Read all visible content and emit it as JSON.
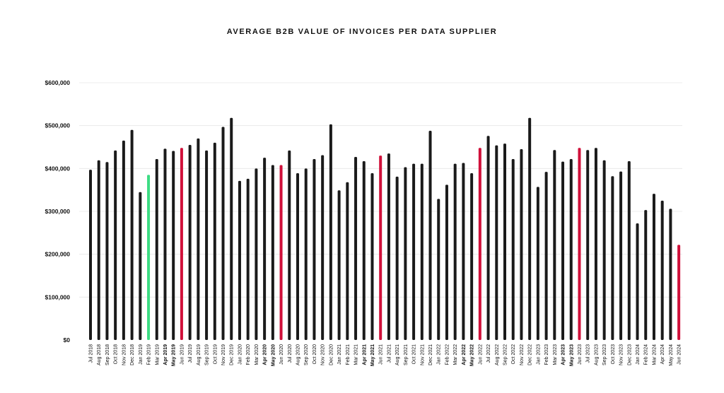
{
  "chart_data": {
    "type": "bar",
    "title": "AVERAGE B2B VALUE OF INVOICES PER DATA SUPPLIER",
    "xlabel": "",
    "ylabel": "",
    "ylim": [
      0,
      600000
    ],
    "yticks": [
      0,
      100000,
      200000,
      300000,
      400000,
      500000,
      600000
    ],
    "ytick_labels": [
      "$0",
      "$100,000",
      "$200,000",
      "$300,000",
      "$400,000",
      "$500,000",
      "$600,000"
    ],
    "grid": true,
    "legend": "none",
    "colors": {
      "default": "#1a1a1a",
      "highlight_red": "#d0103a",
      "highlight_green": "#3ddc84"
    },
    "categories": [
      "Jul 2018",
      "Aug 2018",
      "Sep 2018",
      "Oct 2018",
      "Nov 2018",
      "Dec 2018",
      "Jan 2019",
      "Feb 2019",
      "Mar 2019",
      "Apr 2019",
      "May 2019",
      "Jun 2019",
      "Jul 2019",
      "Aug 2019",
      "Sep 2019",
      "Oct 2019",
      "Nov 2019",
      "Dec 2019",
      "Jan 2020",
      "Feb 2020",
      "Mar 2020",
      "Apr 2020",
      "May 2020",
      "Jun 2020",
      "Jul 2020",
      "Aug 2020",
      "Sep 2020",
      "Oct 2020",
      "Nov 2020",
      "Dec 2020",
      "Jan 2021",
      "Feb 2021",
      "Mar 2021",
      "Apr 2021",
      "May 2021",
      "Jun 2021",
      "Jul 2021",
      "Aug 2021",
      "Sep 2021",
      "Oct 2021",
      "Nov 2021",
      "Dec 2021",
      "Jan 2022",
      "Feb 2022",
      "Mar 2022",
      "Apr 2022",
      "May 2022",
      "Jun 2022",
      "Jul 2022",
      "Aug 2022",
      "Sep 2022",
      "Oct 2022",
      "Nov 2022",
      "Dec 2022",
      "Jan 2023",
      "Feb 2023",
      "Mar 2023",
      "Apr 2023",
      "May 2023",
      "Jun 2023",
      "Jul 2023",
      "Aug 2023",
      "Sep 2023",
      "Oct 2023",
      "Nov 2023",
      "Dec 2023",
      "Jan 2024",
      "Feb 2024",
      "Mar 2024",
      "Apr 2024",
      "May 2024",
      "Jun 2024"
    ],
    "values": [
      397000,
      419000,
      415000,
      442000,
      465000,
      490000,
      345000,
      385000,
      422000,
      446000,
      441000,
      448000,
      455000,
      470000,
      442000,
      460000,
      497000,
      518000,
      371000,
      376000,
      400000,
      425000,
      408000,
      408000,
      442000,
      389000,
      400000,
      422000,
      431000,
      503000,
      349000,
      368000,
      427000,
      417000,
      389000,
      430000,
      435000,
      381000,
      403000,
      411000,
      411000,
      488000,
      329000,
      362000,
      411000,
      413000,
      389000,
      448000,
      476000,
      454000,
      458000,
      422000,
      445000,
      518000,
      357000,
      392000,
      443000,
      416000,
      422000,
      448000,
      443000,
      448000,
      419000,
      382000,
      393000,
      417000,
      272000,
      303000,
      341000,
      325000,
      306000,
      222000
    ],
    "bar_colors": [
      "default",
      "default",
      "default",
      "default",
      "default",
      "default",
      "default",
      "highlight_green",
      "default",
      "default",
      "default",
      "highlight_red",
      "default",
      "default",
      "default",
      "default",
      "default",
      "default",
      "default",
      "default",
      "default",
      "default",
      "default",
      "highlight_red",
      "default",
      "default",
      "default",
      "default",
      "default",
      "default",
      "default",
      "default",
      "default",
      "default",
      "default",
      "highlight_red",
      "default",
      "default",
      "default",
      "default",
      "default",
      "default",
      "default",
      "default",
      "default",
      "default",
      "default",
      "highlight_red",
      "default",
      "default",
      "default",
      "default",
      "default",
      "default",
      "default",
      "default",
      "default",
      "default",
      "default",
      "highlight_red",
      "default",
      "default",
      "default",
      "default",
      "default",
      "default",
      "default",
      "default",
      "default",
      "default",
      "default",
      "highlight_red"
    ],
    "bold_tick_labels": [
      "Apr 2019",
      "May 2019",
      "Apr 2020",
      "May 2020",
      "Apr 2021",
      "May 2021",
      "Apr 2022",
      "May 2022",
      "Apr 2023",
      "May 2023"
    ]
  }
}
